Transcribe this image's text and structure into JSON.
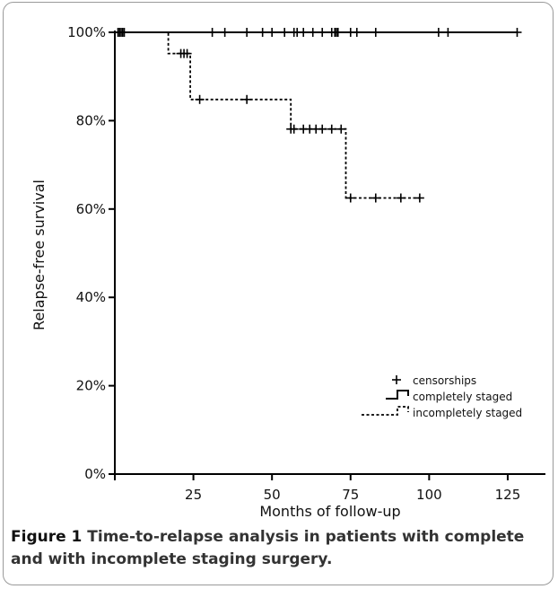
{
  "chart_data": {
    "type": "line",
    "subtype": "kaplan-meier step",
    "xlabel": "Months of follow-up",
    "ylabel": "Relapse-free survival",
    "xlim": [
      0,
      137
    ],
    "ylim": [
      0,
      100
    ],
    "xticks": [
      0,
      25,
      50,
      75,
      100,
      125
    ],
    "xtick_labels": [
      "",
      "25",
      "50",
      "75",
      "100",
      "125"
    ],
    "yticks": [
      0,
      20,
      40,
      60,
      80,
      100
    ],
    "ytick_labels": [
      "0%",
      "20%",
      "40%",
      "60%",
      "80%",
      "100%"
    ],
    "grid": false,
    "legend_position": "bottom-right",
    "legend": [
      {
        "key": "censor",
        "label": "censorships"
      },
      {
        "key": "complete",
        "label": "completely staged"
      },
      {
        "key": "incomplete",
        "label": "incompletely staged"
      }
    ],
    "series": [
      {
        "key": "complete",
        "line_style": "solid",
        "steps": [
          [
            0,
            100
          ],
          [
            128,
            100
          ]
        ],
        "censor_times": [
          1,
          1.5,
          2,
          2.5,
          3,
          31,
          35,
          42,
          47,
          50,
          54,
          57,
          58,
          60,
          63,
          66,
          69,
          70,
          70.5,
          71,
          75,
          77,
          83,
          103,
          106,
          128
        ]
      },
      {
        "key": "incomplete",
        "line_style": "dashed",
        "steps": [
          [
            0,
            100
          ],
          [
            17,
            100
          ],
          [
            17,
            95.2
          ],
          [
            24,
            95.2
          ],
          [
            24,
            84.8
          ],
          [
            56,
            84.8
          ],
          [
            56,
            78.1
          ],
          [
            73.5,
            78.1
          ],
          [
            73.5,
            62.5
          ],
          [
            97,
            62.5
          ]
        ],
        "censor_times": [
          21,
          22,
          23,
          27,
          42,
          56,
          57,
          60,
          62,
          64,
          66,
          69,
          72,
          75,
          83,
          91,
          97
        ]
      }
    ]
  },
  "caption": {
    "label": "Figure 1",
    "text": " Time-to-relapse analysis in patients with complete and with incomplete staging surgery."
  }
}
